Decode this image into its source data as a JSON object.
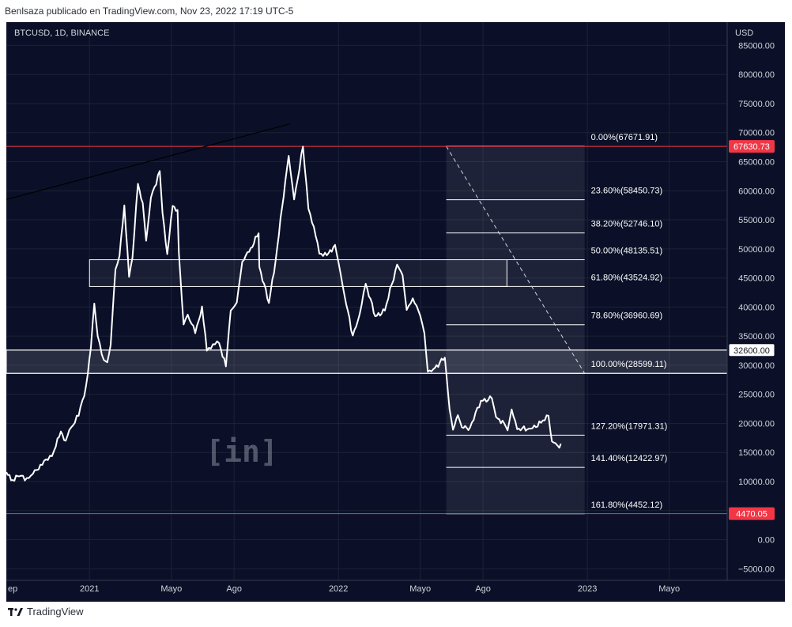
{
  "header": {
    "published": "Benlsaza publicado en TradingView.com, Nov 23, 2022 17:19 UTC-5"
  },
  "footer": {
    "brand": "TradingView",
    "logo_icon": "tradingview-logo"
  },
  "watermark": "[in]",
  "chart_data": {
    "type": "line",
    "title": "BTCUSD, 1D, BINANCE",
    "currency": "USD",
    "y_ticks": [
      85000,
      80000,
      75000,
      70000,
      65000,
      60000,
      55000,
      50000,
      45000,
      40000,
      35000,
      30000,
      25000,
      20000,
      15000,
      10000,
      5000,
      0,
      -5000
    ],
    "y_tick_labels": [
      "85000.00",
      "80000.00",
      "75000.00",
      "70000.00",
      "65000.00",
      "60000.00",
      "55000.00",
      "50000.00",
      "45000.00",
      "40000.00",
      "35000.00",
      "30000.00",
      "25000.00",
      "20000.00",
      "15000.00",
      "10000.00",
      "5000.00",
      "0.00",
      "−5000.00"
    ],
    "ylim": [
      -7000,
      89000
    ],
    "x_range": [
      "2020-09-01",
      "2023-07-25"
    ],
    "x_ticks": [
      {
        "date": "2020-09-01",
        "label": "ep"
      },
      {
        "date": "2021-01-01",
        "label": "2021"
      },
      {
        "date": "2021-05-01",
        "label": "Mayo"
      },
      {
        "date": "2021-08-01",
        "label": "Ago"
      },
      {
        "date": "2022-01-01",
        "label": "2022"
      },
      {
        "date": "2022-05-01",
        "label": "Mayo"
      },
      {
        "date": "2022-08-01",
        "label": "Ago"
      },
      {
        "date": "2023-01-01",
        "label": "2023"
      },
      {
        "date": "2023-05-01",
        "label": "Mayo"
      }
    ],
    "series": [
      {
        "color": "#ffffff",
        "points": [
          [
            "2020-09-01",
            11600
          ],
          [
            "2020-09-08",
            10200
          ],
          [
            "2020-09-20",
            10900
          ],
          [
            "2020-10-01",
            10600
          ],
          [
            "2020-10-10",
            11300
          ],
          [
            "2020-10-21",
            12900
          ],
          [
            "2020-11-01",
            13700
          ],
          [
            "2020-11-10",
            15300
          ],
          [
            "2020-11-20",
            18600
          ],
          [
            "2020-11-27",
            17000
          ],
          [
            "2020-12-05",
            19300
          ],
          [
            "2020-12-16",
            21300
          ],
          [
            "2020-12-27",
            26500
          ],
          [
            "2021-01-03",
            33000
          ],
          [
            "2021-01-08",
            40600
          ],
          [
            "2021-01-13",
            35000
          ],
          [
            "2021-01-22",
            30900
          ],
          [
            "2021-01-27",
            30500
          ],
          [
            "2021-02-01",
            33500
          ],
          [
            "2021-02-08",
            46500
          ],
          [
            "2021-02-14",
            48800
          ],
          [
            "2021-02-21",
            57500
          ],
          [
            "2021-02-28",
            45200
          ],
          [
            "2021-03-05",
            48500
          ],
          [
            "2021-03-13",
            61200
          ],
          [
            "2021-03-20",
            57900
          ],
          [
            "2021-03-25",
            51400
          ],
          [
            "2021-04-01",
            58800
          ],
          [
            "2021-04-14",
            63400
          ],
          [
            "2021-04-18",
            56200
          ],
          [
            "2021-04-25",
            49100
          ],
          [
            "2021-05-03",
            57400
          ],
          [
            "2021-05-10",
            56700
          ],
          [
            "2021-05-12",
            49300
          ],
          [
            "2021-05-19",
            37000
          ],
          [
            "2021-05-25",
            38700
          ],
          [
            "2021-06-05",
            35500
          ],
          [
            "2021-06-15",
            40100
          ],
          [
            "2021-06-22",
            32500
          ],
          [
            "2021-07-01",
            33600
          ],
          [
            "2021-07-10",
            33800
          ],
          [
            "2021-07-20",
            29800
          ],
          [
            "2021-07-27",
            39400
          ],
          [
            "2021-08-05",
            40800
          ],
          [
            "2021-08-13",
            47800
          ],
          [
            "2021-08-23",
            49500
          ],
          [
            "2021-09-06",
            52700
          ],
          [
            "2021-09-07",
            46900
          ],
          [
            "2021-09-21",
            40700
          ],
          [
            "2021-10-01",
            48100
          ],
          [
            "2021-10-15",
            61600
          ],
          [
            "2021-10-20",
            66000
          ],
          [
            "2021-10-28",
            58500
          ],
          [
            "2021-11-10",
            67600
          ],
          [
            "2021-11-18",
            56900
          ],
          [
            "2021-11-26",
            53800
          ],
          [
            "2021-12-04",
            49200
          ],
          [
            "2021-12-15",
            48900
          ],
          [
            "2021-12-27",
            50700
          ],
          [
            "2022-01-01",
            47700
          ],
          [
            "2022-01-10",
            41900
          ],
          [
            "2022-01-22",
            35100
          ],
          [
            "2022-02-01",
            38700
          ],
          [
            "2022-02-10",
            44000
          ],
          [
            "2022-02-24",
            38400
          ],
          [
            "2022-03-10",
            39400
          ],
          [
            "2022-03-28",
            47300
          ],
          [
            "2022-04-05",
            45500
          ],
          [
            "2022-04-11",
            39500
          ],
          [
            "2022-04-20",
            41500
          ],
          [
            "2022-05-01",
            38500
          ],
          [
            "2022-05-07",
            35500
          ],
          [
            "2022-05-12",
            28900
          ],
          [
            "2022-05-20",
            29300
          ],
          [
            "2022-06-06",
            31300
          ],
          [
            "2022-06-13",
            22400
          ],
          [
            "2022-06-18",
            18900
          ],
          [
            "2022-06-25",
            21400
          ],
          [
            "2022-07-01",
            19300
          ],
          [
            "2022-07-13",
            19300
          ],
          [
            "2022-07-29",
            23900
          ],
          [
            "2022-08-14",
            24300
          ],
          [
            "2022-08-20",
            21100
          ],
          [
            "2022-09-01",
            20000
          ],
          [
            "2022-09-06",
            18800
          ],
          [
            "2022-09-12",
            22400
          ],
          [
            "2022-09-20",
            19000
          ],
          [
            "2022-10-10",
            19100
          ],
          [
            "2022-10-25",
            20100
          ],
          [
            "2022-11-05",
            21300
          ],
          [
            "2022-11-08",
            18500
          ],
          [
            "2022-11-10",
            16900
          ],
          [
            "2022-11-15",
            16600
          ],
          [
            "2022-11-21",
            15800
          ],
          [
            "2022-11-23",
            16500
          ]
        ]
      }
    ],
    "trendline": {
      "color": "#000000",
      "from": [
        "2020-09-01",
        58500
      ],
      "to": [
        "2021-10-22",
        71500
      ]
    },
    "zones": [
      {
        "from": "2021-01-01",
        "to": "2022-09-05",
        "y1": 43524.92,
        "y2": 48135.51,
        "fill": "rgba(255,255,255,0.06)"
      },
      {
        "from": "2020-09-01",
        "to": "2023-07-25",
        "y1": 28599.11,
        "y2": 32600,
        "fill": "rgba(255,255,255,0.12)"
      }
    ],
    "fib": {
      "from": "2022-06-08",
      "to": "2022-12-28",
      "levels": [
        {
          "label": "0.00%(67671.91)",
          "value": 67671.91
        },
        {
          "label": "23.60%(58450.73)",
          "value": 58450.73
        },
        {
          "label": "38.20%(52746.10)",
          "value": 52746.1
        },
        {
          "label": "50.00%(48135.51)",
          "value": 48135.51
        },
        {
          "label": "61.80%(43524.92)",
          "value": 43524.92
        },
        {
          "label": "78.60%(36960.69)",
          "value": 36960.69
        },
        {
          "label": "100.00%(28599.11)",
          "value": 28599.11
        },
        {
          "label": "127.20%(17971.31)",
          "value": 17971.31
        },
        {
          "label": "141.40%(12422.97)",
          "value": 12422.97
        },
        {
          "label": "161.80%(4452.12)",
          "value": 4452.12
        }
      ],
      "dashed_from": [
        "2022-06-08",
        67671.91
      ],
      "dashed_to": [
        "2022-12-28",
        28599.11
      ]
    },
    "hlines": [
      {
        "value": 67630.73,
        "color": "#f23645",
        "label": "67630.73"
      },
      {
        "value": 32600,
        "color": "#ffffff",
        "label": "32600.00"
      },
      {
        "value": 28599.11,
        "color": "#ffffff",
        "label": ""
      },
      {
        "value": 4470.05,
        "color": "#f23645",
        "label": "4470.05"
      }
    ]
  }
}
